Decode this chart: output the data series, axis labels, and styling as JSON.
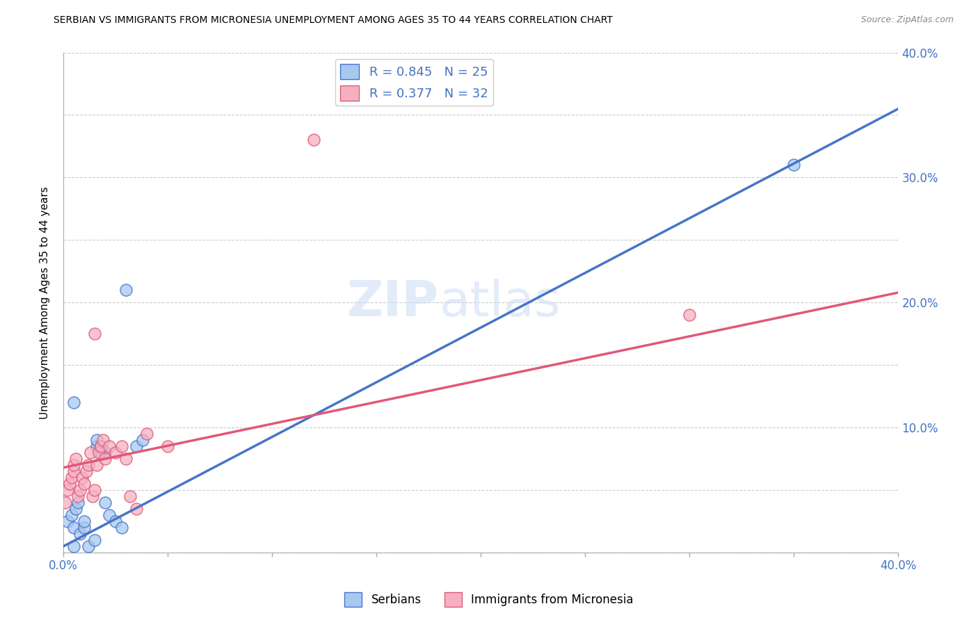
{
  "title": "SERBIAN VS IMMIGRANTS FROM MICRONESIA UNEMPLOYMENT AMONG AGES 35 TO 44 YEARS CORRELATION CHART",
  "source": "Source: ZipAtlas.com",
  "ylabel": "Unemployment Among Ages 35 to 44 years",
  "xlim": [
    0.0,
    0.4
  ],
  "ylim": [
    0.0,
    0.4
  ],
  "xticks": [
    0.0,
    0.05,
    0.1,
    0.15,
    0.2,
    0.25,
    0.3,
    0.35,
    0.4
  ],
  "yticks": [
    0.0,
    0.05,
    0.1,
    0.15,
    0.2,
    0.25,
    0.3,
    0.35,
    0.4
  ],
  "ytick_labels_right": [
    "",
    "",
    "10.0%",
    "",
    "20.0%",
    "",
    "30.0%",
    "",
    "40.0%"
  ],
  "watermark_line1": "ZIP",
  "watermark_line2": "atlas",
  "serbian_R": "0.845",
  "serbian_N": "25",
  "micronesia_R": "0.377",
  "micronesia_N": "32",
  "serbian_color": "#A8C8F0",
  "micronesia_color": "#F5B0C0",
  "trendline_serbian_color": "#4575C8",
  "trendline_micronesia_color": "#E05878",
  "background_color": "#FFFFFF",
  "serbian_scatter": [
    [
      0.002,
      0.025
    ],
    [
      0.004,
      0.03
    ],
    [
      0.005,
      0.02
    ],
    [
      0.006,
      0.035
    ],
    [
      0.007,
      0.04
    ],
    [
      0.008,
      0.015
    ],
    [
      0.01,
      0.02
    ],
    [
      0.01,
      0.025
    ],
    [
      0.012,
      0.005
    ],
    [
      0.015,
      0.01
    ],
    [
      0.016,
      0.085
    ],
    [
      0.016,
      0.09
    ],
    [
      0.018,
      0.08
    ],
    [
      0.018,
      0.085
    ],
    [
      0.02,
      0.08
    ],
    [
      0.02,
      0.04
    ],
    [
      0.022,
      0.03
    ],
    [
      0.025,
      0.025
    ],
    [
      0.028,
      0.02
    ],
    [
      0.005,
      0.12
    ],
    [
      0.03,
      0.21
    ],
    [
      0.035,
      0.085
    ],
    [
      0.038,
      0.09
    ],
    [
      0.35,
      0.31
    ],
    [
      0.005,
      0.005
    ]
  ],
  "micronesia_scatter": [
    [
      0.001,
      0.04
    ],
    [
      0.002,
      0.05
    ],
    [
      0.003,
      0.055
    ],
    [
      0.004,
      0.06
    ],
    [
      0.005,
      0.065
    ],
    [
      0.005,
      0.07
    ],
    [
      0.006,
      0.075
    ],
    [
      0.007,
      0.045
    ],
    [
      0.008,
      0.05
    ],
    [
      0.009,
      0.06
    ],
    [
      0.01,
      0.055
    ],
    [
      0.011,
      0.065
    ],
    [
      0.012,
      0.07
    ],
    [
      0.013,
      0.08
    ],
    [
      0.014,
      0.045
    ],
    [
      0.015,
      0.05
    ],
    [
      0.016,
      0.07
    ],
    [
      0.017,
      0.08
    ],
    [
      0.018,
      0.085
    ],
    [
      0.019,
      0.09
    ],
    [
      0.02,
      0.075
    ],
    [
      0.022,
      0.085
    ],
    [
      0.025,
      0.08
    ],
    [
      0.028,
      0.085
    ],
    [
      0.03,
      0.075
    ],
    [
      0.032,
      0.045
    ],
    [
      0.035,
      0.035
    ],
    [
      0.04,
      0.095
    ],
    [
      0.015,
      0.175
    ],
    [
      0.05,
      0.085
    ],
    [
      0.3,
      0.19
    ],
    [
      0.12,
      0.33
    ]
  ],
  "serbian_trendline": [
    [
      0.0,
      0.005
    ],
    [
      0.4,
      0.355
    ]
  ],
  "micronesia_trendline": [
    [
      0.0,
      0.068
    ],
    [
      0.4,
      0.208
    ]
  ]
}
